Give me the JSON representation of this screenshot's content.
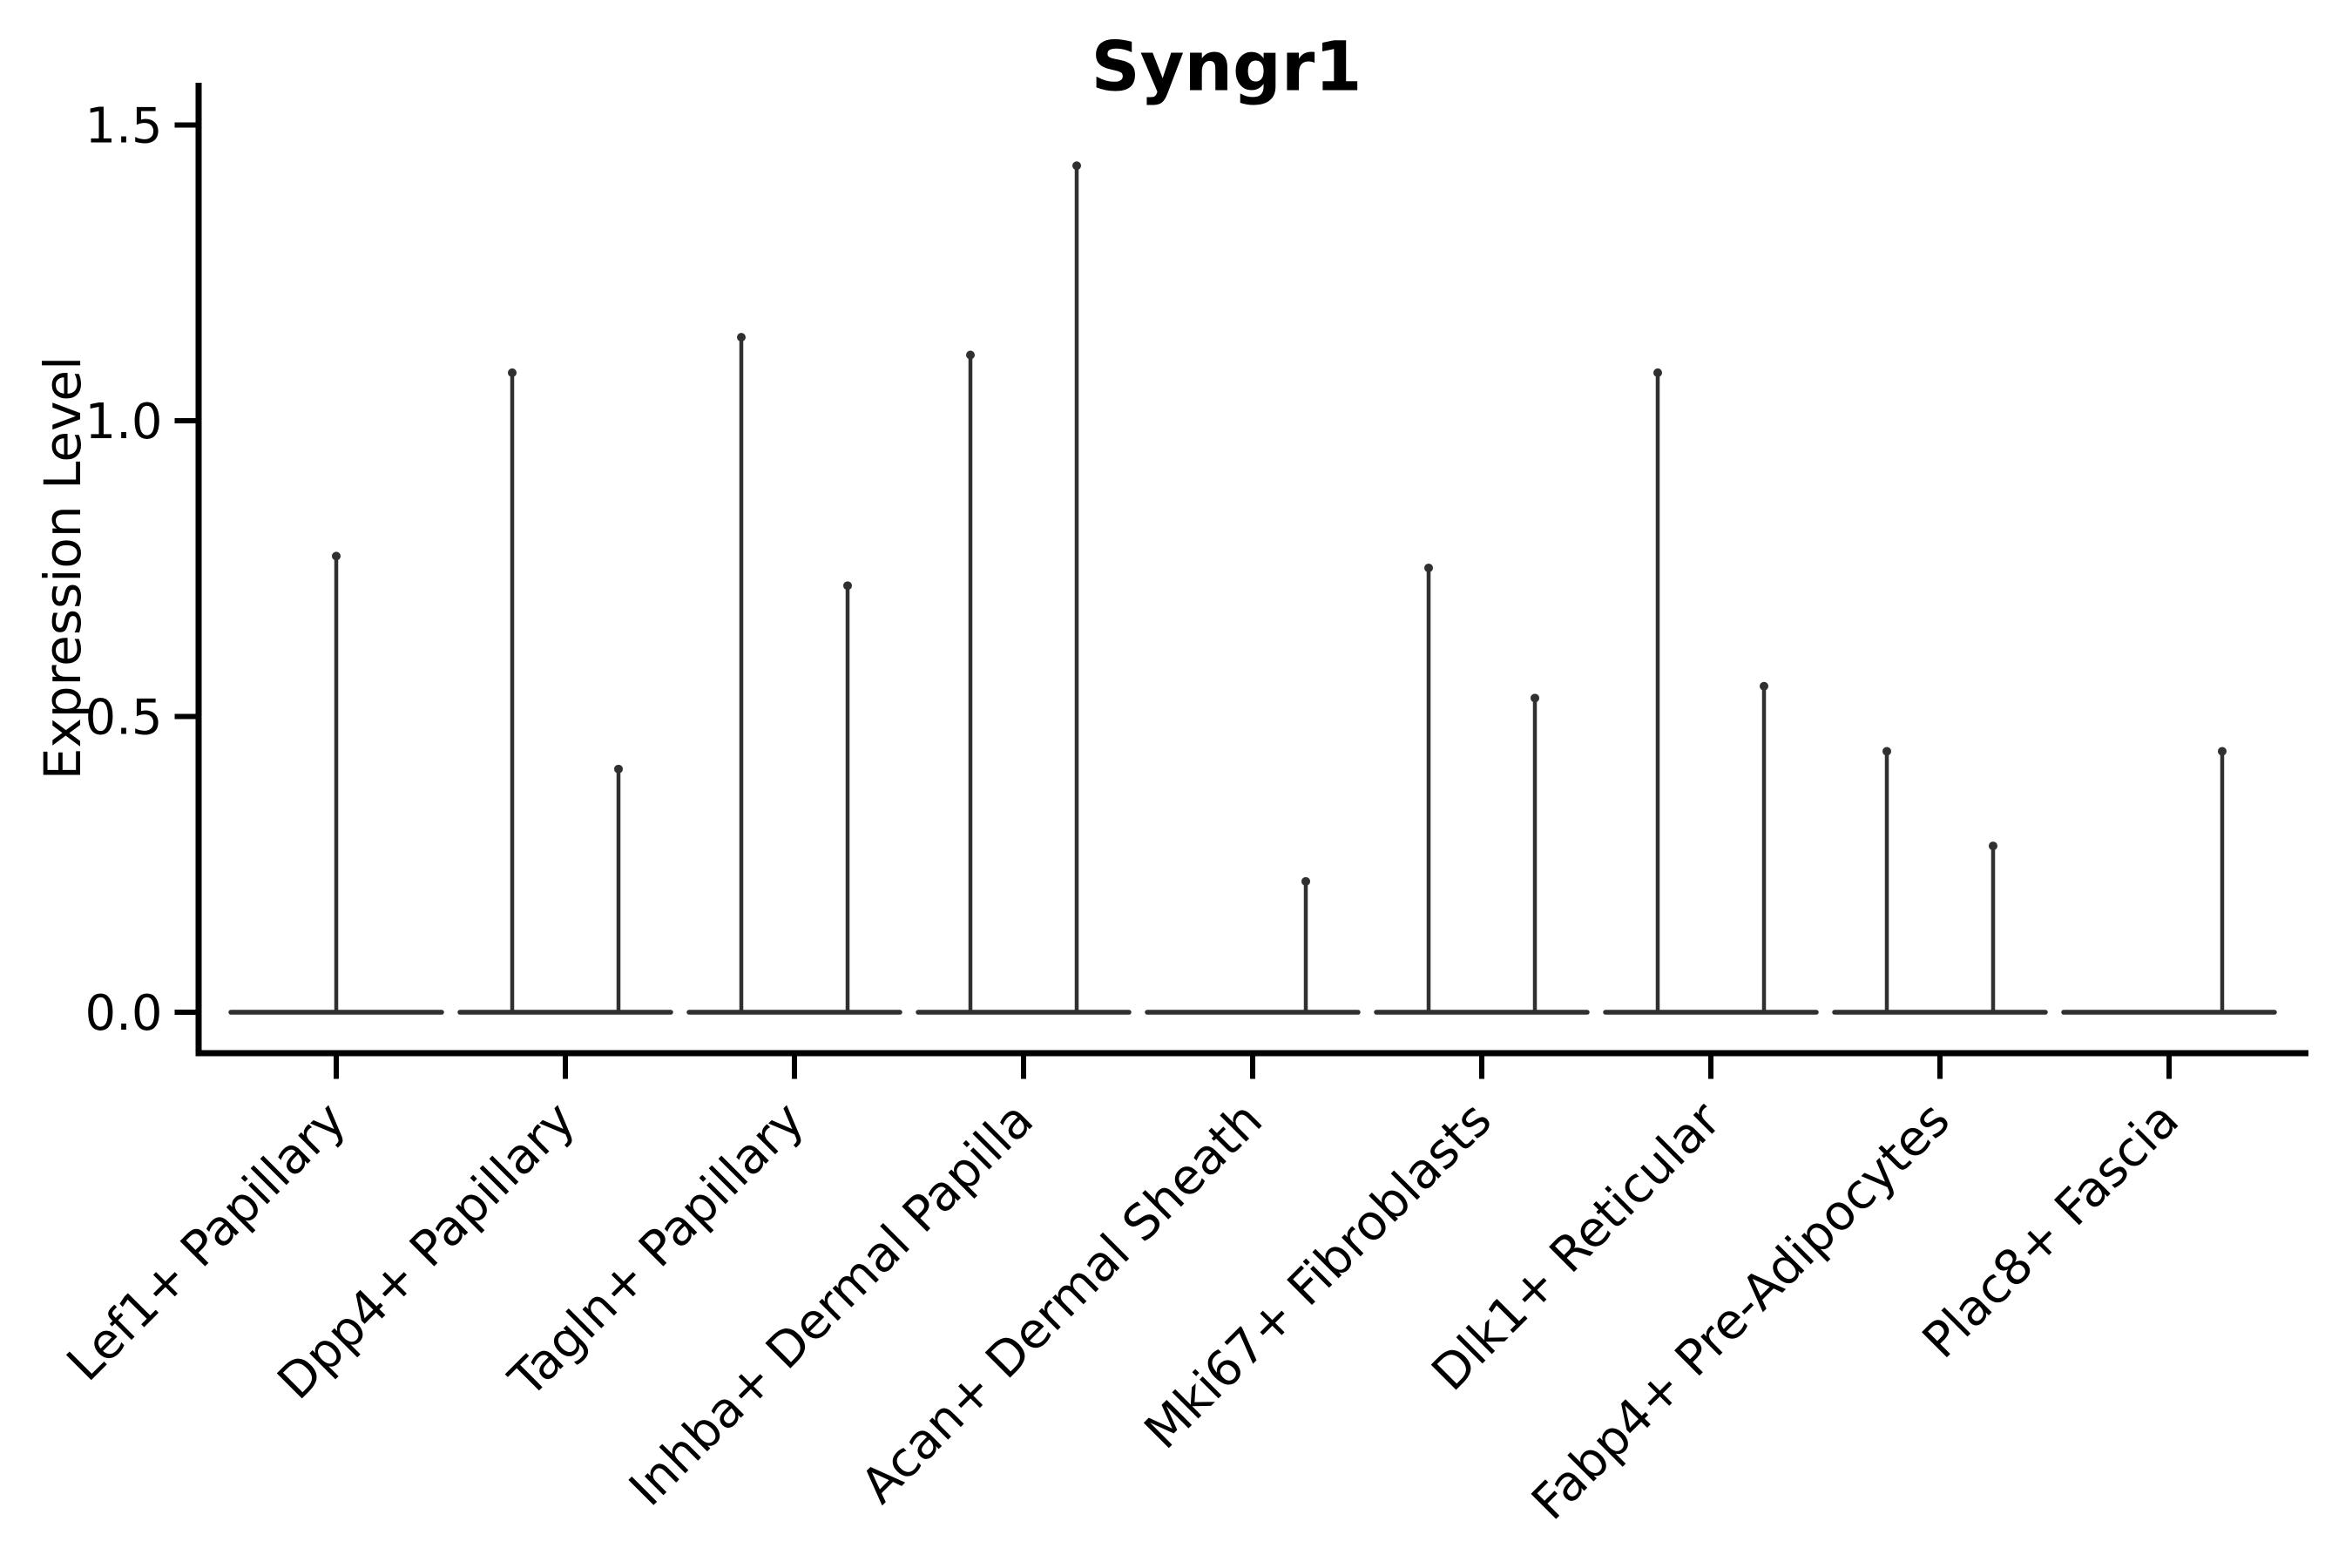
{
  "chart_data": {
    "type": "violin",
    "title": "Syngr1",
    "ylabel": "Expression Level",
    "xlabel": "",
    "ytick_labels": [
      "0.0",
      "0.5",
      "1.0",
      "1.5"
    ],
    "ytick_values": [
      0.0,
      0.5,
      1.0,
      1.5
    ],
    "ylim": [
      -0.07,
      1.57
    ],
    "grid": false,
    "legend": "none",
    "categories": [
      "Lef1+ Papillary",
      "Dpp4+ Papillary",
      "Tagln+ Papillary",
      "Inhba+ Dermal Papilla",
      "Acan+ Dermal Sheath",
      "Mki67+ Fibroblasts",
      "Dlk1+ Reticular",
      "Fabp4+ Pre-Adipocytes",
      "Plac8+ Fascia"
    ],
    "violins": [
      {
        "category": "Lef1+ Papillary",
        "spikes": [
          {
            "group_offset": 0,
            "max_expression": 0.78
          }
        ]
      },
      {
        "category": "Dpp4+ Papillary",
        "spikes": [
          {
            "group_offset": -1,
            "max_expression": 1.09
          },
          {
            "group_offset": 1,
            "max_expression": 0.42
          }
        ]
      },
      {
        "category": "Tagln+ Papillary",
        "spikes": [
          {
            "group_offset": -1,
            "max_expression": 1.15
          },
          {
            "group_offset": 1,
            "max_expression": 0.73
          }
        ]
      },
      {
        "category": "Inhba+ Dermal Papilla",
        "spikes": [
          {
            "group_offset": -1,
            "max_expression": 1.12
          },
          {
            "group_offset": 1,
            "max_expression": 1.44
          }
        ]
      },
      {
        "category": "Acan+ Dermal Sheath",
        "spikes": [
          {
            "group_offset": 1,
            "max_expression": 0.23
          }
        ]
      },
      {
        "category": "Mki67+ Fibroblasts",
        "spikes": [
          {
            "group_offset": -1,
            "max_expression": 0.76
          },
          {
            "group_offset": 1,
            "max_expression": 0.54
          }
        ]
      },
      {
        "category": "Dlk1+ Reticular",
        "spikes": [
          {
            "group_offset": -1,
            "max_expression": 1.09
          },
          {
            "group_offset": 1,
            "max_expression": 0.56
          }
        ]
      },
      {
        "category": "Fabp4+ Pre-Adipocytes",
        "spikes": [
          {
            "group_offset": -1,
            "max_expression": 0.45
          },
          {
            "group_offset": 1,
            "max_expression": 0.29
          }
        ]
      },
      {
        "category": "Plac8+ Fascia",
        "spikes": [
          {
            "group_offset": 1,
            "max_expression": 0.45
          }
        ]
      }
    ],
    "violin_description": "Collapsed violins: wide flat base at expression 0 with a thin spike rising to the max expression value; categories with two spikes contain two dodged violins, categories with one spike offset 0 contain a single full-width violin",
    "colors": {
      "violin_line": "#303030",
      "axis": "#000000",
      "text": "#000000",
      "background": "#ffffff"
    }
  }
}
